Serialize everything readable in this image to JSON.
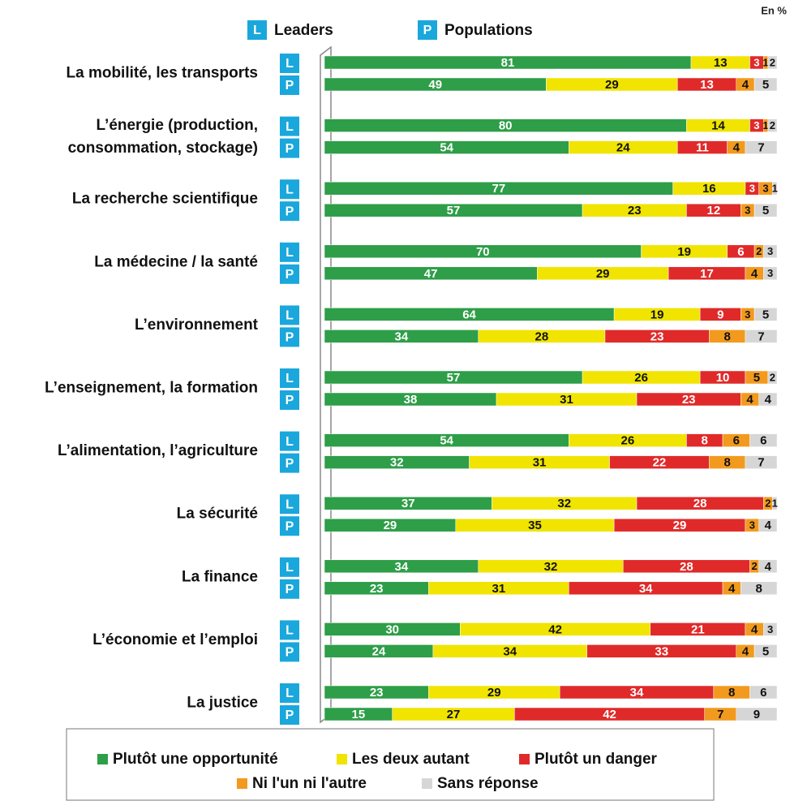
{
  "chart_data": {
    "type": "stacked-bar-horizontal",
    "unit_note": "En %",
    "categories": [
      "La mobilité, les transports",
      [
        "L’énergie (production,",
        "consommation, stockage)"
      ],
      "La recherche scientifique",
      "La médecine / la santé",
      "L’environnement",
      "L’enseignement, la formation",
      "L’alimentation, l’agriculture",
      "La sécurité",
      "La finance",
      "L’économie et l’emploi",
      "La justice"
    ],
    "groups": [
      {
        "badge": "L",
        "name": "Leaders"
      },
      {
        "badge": "P",
        "name": "Populations"
      }
    ],
    "xlim": [
      0,
      100
    ],
    "series": [
      {
        "name": "Plutôt une opportunité",
        "color": "#2e9e48",
        "label_color": "#ffffff",
        "values": [
          [
            81,
            80,
            77,
            70,
            64,
            57,
            54,
            37,
            34,
            30,
            23
          ],
          [
            49,
            54,
            57,
            47,
            34,
            38,
            32,
            29,
            23,
            24,
            15
          ]
        ]
      },
      {
        "name": "Les deux autant",
        "color": "#f0e400",
        "label_color": "#111111",
        "values": [
          [
            13,
            14,
            16,
            19,
            19,
            26,
            26,
            32,
            32,
            42,
            29
          ],
          [
            29,
            24,
            23,
            29,
            28,
            31,
            31,
            35,
            31,
            34,
            27
          ]
        ]
      },
      {
        "name": "Plutôt un danger",
        "color": "#e02a2a",
        "label_color": "#ffffff",
        "values": [
          [
            3,
            3,
            3,
            6,
            9,
            10,
            8,
            28,
            28,
            21,
            34
          ],
          [
            13,
            11,
            12,
            17,
            23,
            23,
            22,
            29,
            34,
            33,
            42
          ]
        ]
      },
      {
        "name": "Ni l'un ni l'autre",
        "color": "#f29a1e",
        "label_color": "#111111",
        "values": [
          [
            1,
            1,
            3,
            2,
            3,
            5,
            6,
            2,
            2,
            4,
            8
          ],
          [
            4,
            4,
            3,
            4,
            8,
            4,
            8,
            3,
            4,
            4,
            7
          ]
        ]
      },
      {
        "name": "Sans réponse",
        "color": "#d6d6d6",
        "label_color": "#111111",
        "values": [
          [
            2,
            2,
            1,
            3,
            5,
            2,
            6,
            1,
            4,
            3,
            6
          ],
          [
            5,
            7,
            5,
            3,
            7,
            4,
            7,
            4,
            8,
            5,
            9
          ]
        ]
      }
    ]
  }
}
